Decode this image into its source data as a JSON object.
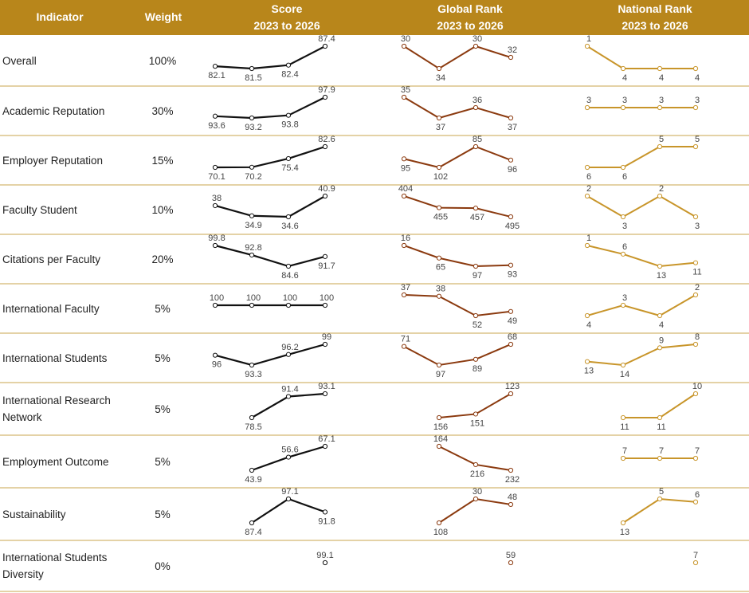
{
  "header": {
    "indicator": "Indicator",
    "weight": "Weight",
    "score": "Score",
    "score_period": "2023 to 2026",
    "global_rank": "Global Rank",
    "global_period": "2023 to 2026",
    "national_rank": "National Rank",
    "national_period": "2023 to 2026"
  },
  "table": {
    "rows": [
      {
        "indicator": "Overall",
        "weight": "100%",
        "score": [
          82.1,
          81.5,
          82.4,
          87.4
        ],
        "global_rank": [
          30,
          34,
          30,
          32
        ],
        "national_rank": [
          1,
          4,
          4,
          4
        ]
      },
      {
        "indicator": "Academic Reputation",
        "weight": "30%",
        "score": [
          93.6,
          93.2,
          93.8,
          97.9
        ],
        "global_rank": [
          35,
          37,
          36,
          37
        ],
        "national_rank": [
          3,
          3,
          3,
          3
        ]
      },
      {
        "indicator": "Employer Reputation",
        "weight": "15%",
        "score": [
          70.1,
          70.2,
          75.4,
          82.6
        ],
        "global_rank": [
          95,
          102,
          85,
          96
        ],
        "national_rank": [
          6,
          6,
          5,
          5
        ]
      },
      {
        "indicator": "Faculty Student",
        "weight": "10%",
        "score": [
          38,
          34.9,
          34.6,
          40.9
        ],
        "global_rank": [
          404,
          455,
          457,
          495
        ],
        "national_rank": [
          2,
          3,
          2,
          3
        ]
      },
      {
        "indicator": "Citations per Faculty",
        "weight": "20%",
        "score": [
          99.8,
          92.8,
          84.6,
          91.7
        ],
        "global_rank": [
          16,
          65,
          97,
          93
        ],
        "national_rank": [
          1,
          6,
          13,
          11
        ]
      },
      {
        "indicator": "International Faculty",
        "weight": "5%",
        "score": [
          100,
          100,
          100,
          100
        ],
        "global_rank": [
          37,
          38,
          52,
          49
        ],
        "national_rank": [
          4,
          3,
          4,
          2
        ]
      },
      {
        "indicator": "International Students",
        "weight": "5%",
        "score": [
          96,
          93.3,
          96.2,
          99
        ],
        "global_rank": [
          71,
          97,
          89,
          68
        ],
        "national_rank": [
          13,
          14,
          9,
          8
        ]
      },
      {
        "indicator": "International Research Network",
        "weight": "5%",
        "score": [
          null,
          78.5,
          91.4,
          93.1
        ],
        "global_rank": [
          null,
          156,
          151,
          123
        ],
        "national_rank": [
          null,
          11,
          11,
          10
        ]
      },
      {
        "indicator": "Employment Outcome",
        "weight": "5%",
        "score": [
          null,
          43.9,
          56.6,
          67.1
        ],
        "global_rank": [
          null,
          164,
          216,
          232
        ],
        "national_rank": [
          null,
          7,
          7,
          7
        ]
      },
      {
        "indicator": "Sustainability",
        "weight": "5%",
        "score": [
          null,
          87.4,
          97.1,
          91.8
        ],
        "global_rank": [
          null,
          108,
          30,
          48
        ],
        "national_rank": [
          null,
          13,
          5,
          6
        ]
      },
      {
        "indicator": "International Students Diversity",
        "weight": "0%",
        "score": [
          null,
          null,
          null,
          99.1
        ],
        "global_rank": [
          null,
          null,
          null,
          59
        ],
        "national_rank": [
          null,
          null,
          null,
          7
        ]
      }
    ]
  }
}
